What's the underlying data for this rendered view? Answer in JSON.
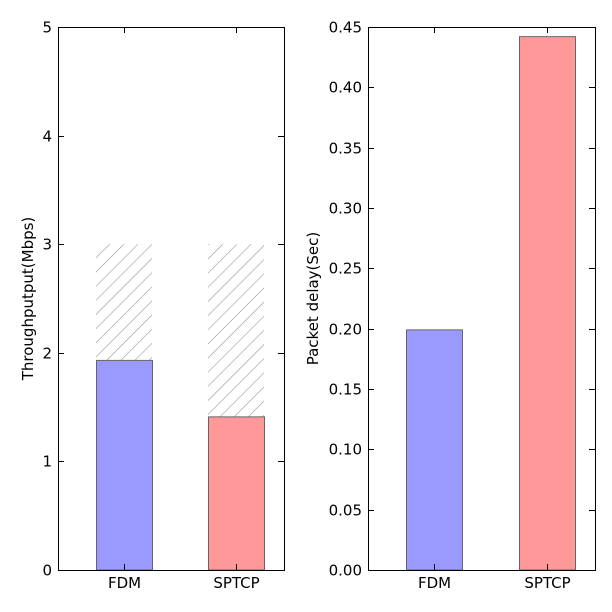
{
  "chart_data": [
    {
      "type": "bar",
      "categories": [
        "FDM",
        "SPTCP"
      ],
      "series": [
        {
          "values": [
            1.93,
            1.41
          ],
          "colors": [
            "#9999ff",
            "#ff9999"
          ]
        },
        {
          "values": [
            3.0,
            3.0
          ],
          "pattern": "hatched",
          "stacked_behind": true
        }
      ],
      "ylabel": "Throughputput(Mbps)",
      "xlabel": "",
      "ylim": [
        0,
        5
      ],
      "yticks": [
        "0",
        "1",
        "2",
        "3",
        "4",
        "5"
      ],
      "grid": false
    },
    {
      "type": "bar",
      "categories": [
        "FDM",
        "SPTCP"
      ],
      "series": [
        {
          "values": [
            0.199,
            0.442
          ],
          "colors": [
            "#9999ff",
            "#ff9999"
          ]
        }
      ],
      "ylabel": "Packet delay(Sec)",
      "xlabel": "",
      "ylim": [
        0,
        0.45
      ],
      "yticks": [
        "0.00",
        "0.05",
        "0.10",
        "0.15",
        "0.20",
        "0.25",
        "0.30",
        "0.35",
        "0.40",
        "0.45"
      ],
      "grid": false
    }
  ],
  "colors": {
    "fdm": "#9999ff",
    "sptcp": "#ff9999",
    "bar_edge": "#666666",
    "hatch": "#888888"
  }
}
